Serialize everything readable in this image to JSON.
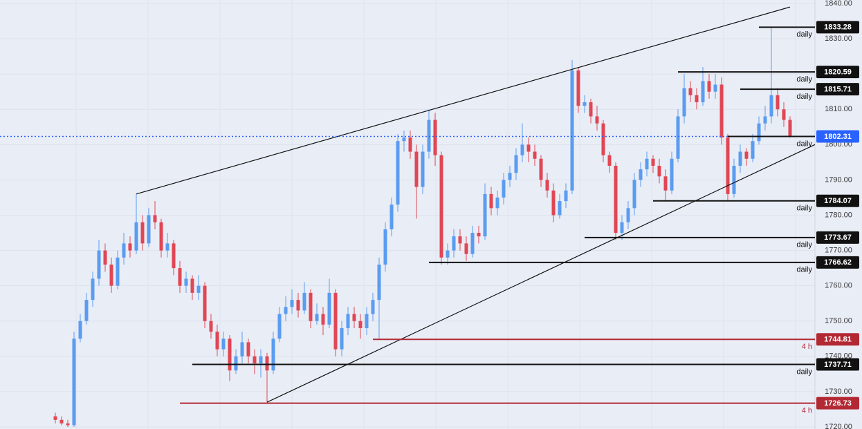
{
  "chart_data": {
    "type": "candlestick",
    "ylim": [
      1719.41,
      1840.98
    ],
    "yticks": [
      {
        "value": 1720,
        "label": "1720.00"
      },
      {
        "value": 1730,
        "label": "1730.00"
      },
      {
        "value": 1740,
        "label": "1740.00"
      },
      {
        "value": 1750,
        "label": "1750.00"
      },
      {
        "value": 1760,
        "label": "1760.00"
      },
      {
        "value": 1770,
        "label": "1770.00"
      },
      {
        "value": 1780,
        "label": "1780.00"
      },
      {
        "value": 1790,
        "label": "1790.00"
      },
      {
        "value": 1800,
        "label": "1800.00"
      },
      {
        "value": 1810,
        "label": "1810.00"
      },
      {
        "value": 1820,
        "label": "1820.00"
      },
      {
        "value": 1830,
        "label": "1830.00"
      },
      {
        "value": 1840,
        "label": "1840.00"
      }
    ],
    "grid": true,
    "colors": {
      "up": "#5a9cf0",
      "down": "#e04654"
    },
    "ohlc": [
      [
        1723,
        1724,
        1721,
        1722
      ],
      [
        1722,
        1723,
        1720.5,
        1721
      ],
      [
        1721,
        1722,
        1720,
        1720.5
      ],
      [
        1720.5,
        1747,
        1720,
        1745
      ],
      [
        1745,
        1752,
        1744,
        1750
      ],
      [
        1750,
        1758,
        1749,
        1756
      ],
      [
        1756,
        1764,
        1754,
        1762
      ],
      [
        1762,
        1773,
        1760,
        1770
      ],
      [
        1770,
        1772,
        1764,
        1766
      ],
      [
        1766,
        1768,
        1758,
        1760
      ],
      [
        1760,
        1770,
        1759,
        1768
      ],
      [
        1768,
        1775,
        1766,
        1772
      ],
      [
        1772,
        1774,
        1768,
        1770
      ],
      [
        1770,
        1786,
        1769,
        1778
      ],
      [
        1778,
        1780,
        1770,
        1772
      ],
      [
        1772,
        1782,
        1771,
        1780
      ],
      [
        1780,
        1784,
        1776,
        1778
      ],
      [
        1778,
        1779,
        1768,
        1770
      ],
      [
        1770,
        1775,
        1768,
        1772
      ],
      [
        1772,
        1773,
        1763,
        1765
      ],
      [
        1765,
        1767,
        1758,
        1760
      ],
      [
        1760,
        1764,
        1758,
        1762
      ],
      [
        1762,
        1763,
        1756,
        1758
      ],
      [
        1758,
        1763,
        1756,
        1760
      ],
      [
        1760,
        1761,
        1748,
        1750
      ],
      [
        1750,
        1752,
        1745,
        1747
      ],
      [
        1747,
        1749,
        1740,
        1742
      ],
      [
        1742,
        1747,
        1740,
        1745
      ],
      [
        1745,
        1746,
        1733,
        1736
      ],
      [
        1736,
        1742,
        1735,
        1740
      ],
      [
        1740,
        1747,
        1738,
        1744
      ],
      [
        1744,
        1745,
        1738,
        1740
      ],
      [
        1740,
        1742,
        1735,
        1738
      ],
      [
        1738,
        1742,
        1734,
        1740
      ],
      [
        1740,
        1741,
        1727,
        1736
      ],
      [
        1736,
        1747,
        1735,
        1745
      ],
      [
        1745,
        1754,
        1744,
        1752
      ],
      [
        1752,
        1757,
        1750,
        1754
      ],
      [
        1754,
        1759,
        1752,
        1756
      ],
      [
        1756,
        1758,
        1751,
        1753
      ],
      [
        1753,
        1761,
        1752,
        1758
      ],
      [
        1758,
        1759,
        1748,
        1750
      ],
      [
        1750,
        1755,
        1749,
        1752
      ],
      [
        1752,
        1754,
        1746,
        1749
      ],
      [
        1749,
        1762,
        1748,
        1758
      ],
      [
        1758,
        1759,
        1740,
        1742
      ],
      [
        1742,
        1750,
        1740,
        1748
      ],
      [
        1748,
        1754,
        1746,
        1752
      ],
      [
        1752,
        1754,
        1748,
        1750
      ],
      [
        1750,
        1752,
        1745,
        1748
      ],
      [
        1748,
        1754,
        1746,
        1752
      ],
      [
        1752,
        1758,
        1750,
        1756
      ],
      [
        1756,
        1768,
        1745,
        1766
      ],
      [
        1766,
        1778,
        1764,
        1776
      ],
      [
        1776,
        1785,
        1774,
        1783
      ],
      [
        1783,
        1803,
        1781,
        1801
      ],
      [
        1801,
        1804,
        1798,
        1802
      ],
      [
        1802,
        1804,
        1796,
        1798
      ],
      [
        1798,
        1800,
        1779,
        1788
      ],
      [
        1788,
        1800,
        1786,
        1798
      ],
      [
        1798,
        1810,
        1796,
        1807
      ],
      [
        1807,
        1809,
        1794,
        1797
      ],
      [
        1797,
        1798,
        1766,
        1768
      ],
      [
        1768,
        1772,
        1766,
        1770
      ],
      [
        1770,
        1776,
        1768,
        1774
      ],
      [
        1774,
        1776,
        1770,
        1772
      ],
      [
        1772,
        1774,
        1767,
        1769
      ],
      [
        1769,
        1777,
        1768,
        1775
      ],
      [
        1775,
        1777,
        1772,
        1774
      ],
      [
        1774,
        1789,
        1773,
        1786
      ],
      [
        1786,
        1788,
        1780,
        1782
      ],
      [
        1782,
        1787,
        1780,
        1785
      ],
      [
        1785,
        1792,
        1783,
        1790
      ],
      [
        1790,
        1794,
        1788,
        1792
      ],
      [
        1792,
        1799,
        1790,
        1797
      ],
      [
        1797,
        1806,
        1795,
        1800
      ],
      [
        1800,
        1802,
        1795,
        1798
      ],
      [
        1798,
        1800,
        1794,
        1796
      ],
      [
        1796,
        1797,
        1788,
        1790
      ],
      [
        1790,
        1792,
        1785,
        1787
      ],
      [
        1787,
        1789,
        1778,
        1780
      ],
      [
        1780,
        1786,
        1779,
        1784
      ],
      [
        1784,
        1789,
        1782,
        1787
      ],
      [
        1787,
        1824,
        1786,
        1821
      ],
      [
        1821,
        1822,
        1809,
        1811
      ],
      [
        1811,
        1814,
        1809,
        1812
      ],
      [
        1812,
        1813,
        1806,
        1808
      ],
      [
        1808,
        1811,
        1804,
        1806
      ],
      [
        1806,
        1807,
        1795,
        1797
      ],
      [
        1797,
        1798,
        1792,
        1794
      ],
      [
        1794,
        1795,
        1773,
        1775
      ],
      [
        1775,
        1780,
        1773,
        1778
      ],
      [
        1778,
        1784,
        1776,
        1782
      ],
      [
        1782,
        1792,
        1780,
        1790
      ],
      [
        1790,
        1795,
        1788,
        1793
      ],
      [
        1793,
        1798,
        1791,
        1796
      ],
      [
        1796,
        1797,
        1792,
        1794
      ],
      [
        1794,
        1796,
        1789,
        1791
      ],
      [
        1791,
        1793,
        1784,
        1787
      ],
      [
        1787,
        1798,
        1786,
        1796
      ],
      [
        1796,
        1810,
        1795,
        1808
      ],
      [
        1808,
        1820,
        1806,
        1816
      ],
      [
        1816,
        1818,
        1812,
        1814
      ],
      [
        1814,
        1816,
        1810,
        1812
      ],
      [
        1812,
        1822,
        1811,
        1818
      ],
      [
        1818,
        1820,
        1813,
        1815
      ],
      [
        1815,
        1820,
        1813,
        1817
      ],
      [
        1817,
        1819,
        1800,
        1802
      ],
      [
        1802,
        1803,
        1784,
        1786
      ],
      [
        1786,
        1796,
        1785,
        1794
      ],
      [
        1794,
        1800,
        1792,
        1798
      ],
      [
        1798,
        1799,
        1794,
        1796
      ],
      [
        1796,
        1803,
        1795,
        1801
      ],
      [
        1801,
        1808,
        1800,
        1806
      ],
      [
        1806,
        1811,
        1804,
        1808
      ],
      [
        1808,
        1833.28,
        1806,
        1814
      ],
      [
        1814,
        1816,
        1808,
        1810
      ],
      [
        1810,
        1812,
        1805,
        1807
      ],
      [
        1807,
        1808,
        1802,
        1802.31
      ]
    ],
    "levels": [
      {
        "value": 1833.28,
        "label": "1833.28",
        "timeframe": "daily",
        "color": "#111111",
        "start": 113
      },
      {
        "value": 1820.59,
        "label": "1820.59",
        "timeframe": "daily",
        "color": "#111111",
        "start": 100
      },
      {
        "value": 1815.71,
        "label": "1815.71",
        "timeframe": "daily",
        "color": "#111111",
        "start": 110
      },
      {
        "value": 1802.31,
        "label": "1802.31",
        "timeframe": "daily",
        "color": "#2962ff",
        "start": 108,
        "current": true
      },
      {
        "value": 1784.07,
        "label": "1784.07",
        "timeframe": "daily",
        "color": "#111111",
        "start": 96
      },
      {
        "value": 1773.67,
        "label": "1773.67",
        "timeframe": "daily",
        "color": "#111111",
        "start": 85
      },
      {
        "value": 1766.62,
        "label": "1766.62",
        "timeframe": "daily",
        "color": "#111111",
        "start": 60
      },
      {
        "value": 1744.81,
        "label": "1744.81",
        "timeframe": "4 h",
        "color": "#b22833",
        "start": 51
      },
      {
        "value": 1737.71,
        "label": "1737.71",
        "timeframe": "daily",
        "color": "#111111",
        "start": 22
      },
      {
        "value": 1726.73,
        "label": "1726.73",
        "timeframe": "4 h",
        "color": "#b22833",
        "start": 20
      }
    ],
    "trendlines": [
      {
        "points": [
          [
            13,
            1786
          ],
          [
            118,
            1839
          ]
        ],
        "color": "#111111"
      },
      {
        "points": [
          [
            34,
            1727
          ],
          [
            122,
            1800
          ]
        ],
        "color": "#111111"
      }
    ]
  }
}
